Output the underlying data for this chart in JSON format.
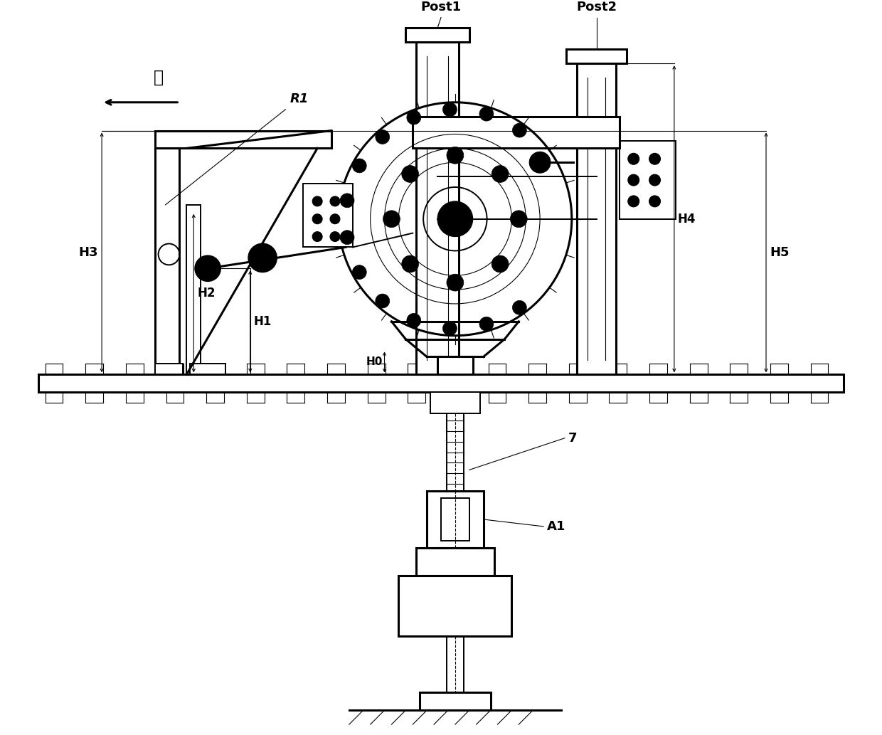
{
  "bg_color": "#ffffff",
  "line_color": "#000000",
  "fig_width": 12.4,
  "fig_height": 10.33,
  "labels": {
    "chinese": "轧",
    "R1": "R1",
    "Post1": "Post1",
    "Post2": "Post2",
    "H0": "H0",
    "H1": "H1",
    "H2": "H2",
    "H3": "H3",
    "H4": "H4",
    "H5": "H5",
    "A1": "A1",
    "seven": "7"
  },
  "font_size_label": 13,
  "font_size_chinese": 17,
  "lw_thick": 2.2,
  "lw_med": 1.4,
  "lw_thin": 0.8
}
